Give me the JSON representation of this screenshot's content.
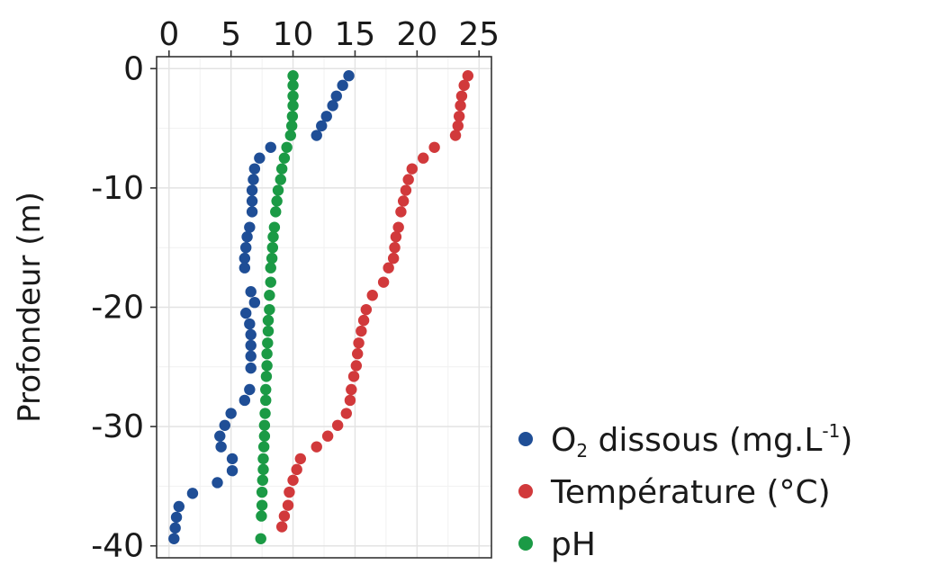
{
  "chart_data": {
    "type": "scatter",
    "title": "",
    "xlabel": "",
    "ylabel": "Profondeur (m)",
    "xlim": [
      -1,
      26
    ],
    "ylim": [
      -41,
      1
    ],
    "x_ticks": [
      0,
      5,
      10,
      15,
      20,
      25
    ],
    "y_ticks": [
      0,
      -10,
      -20,
      -30,
      -40
    ],
    "x_axis_position": "top",
    "grid": true,
    "legend_position": "right-bottom",
    "series": [
      {
        "name": "O₂ dissous (mg.L⁻¹)",
        "name_main": "O",
        "name_sub": "2",
        "name_mid": " dissous (mg.L",
        "name_sup": "-1",
        "name_end": ")",
        "color": "#1f4e96",
        "x": [
          14.5,
          14.0,
          13.5,
          13.2,
          12.7,
          12.3,
          11.9,
          8.2,
          7.3,
          6.9,
          6.8,
          6.7,
          6.7,
          6.7,
          6.5,
          6.3,
          6.2,
          6.1,
          6.1,
          6.6,
          6.9,
          6.2,
          6.5,
          6.6,
          6.6,
          6.6,
          6.6,
          6.5,
          6.1,
          5.0,
          4.5,
          4.1,
          4.2,
          5.1,
          5.1,
          3.9,
          1.9,
          0.8,
          0.6,
          0.5,
          0.4
        ],
        "y": [
          -0.6,
          -1.4,
          -2.3,
          -3.1,
          -4.0,
          -4.8,
          -5.6,
          -6.6,
          -7.5,
          -8.4,
          -9.3,
          -10.2,
          -11.1,
          -12.0,
          -13.3,
          -14.1,
          -15.0,
          -15.9,
          -16.7,
          -18.7,
          -19.6,
          -20.5,
          -21.4,
          -22.3,
          -23.2,
          -24.1,
          -25.1,
          -26.9,
          -27.8,
          -28.9,
          -29.9,
          -30.8,
          -31.7,
          -32.7,
          -33.7,
          -34.7,
          -35.6,
          -36.7,
          -37.6,
          -38.5,
          -39.4
        ]
      },
      {
        "name": "Température (°C)",
        "color": "#d1393b",
        "x": [
          24.1,
          23.8,
          23.6,
          23.5,
          23.4,
          23.3,
          23.1,
          21.4,
          20.5,
          19.6,
          19.3,
          19.1,
          18.9,
          18.7,
          18.5,
          18.3,
          18.2,
          18.1,
          17.7,
          17.3,
          16.4,
          15.9,
          15.7,
          15.5,
          15.3,
          15.2,
          15.1,
          14.9,
          14.7,
          14.6,
          14.3,
          13.6,
          12.8,
          11.9,
          10.6,
          10.3,
          10.0,
          9.7,
          9.6,
          9.3,
          9.1
        ],
        "y": [
          -0.6,
          -1.4,
          -2.3,
          -3.1,
          -4.0,
          -4.8,
          -5.6,
          -6.6,
          -7.5,
          -8.4,
          -9.3,
          -10.2,
          -11.1,
          -12.0,
          -13.3,
          -14.1,
          -15.0,
          -15.9,
          -16.7,
          -17.9,
          -19.0,
          -20.2,
          -21.1,
          -22.0,
          -23.0,
          -23.9,
          -24.9,
          -25.8,
          -26.9,
          -27.8,
          -28.9,
          -29.9,
          -30.8,
          -31.7,
          -32.7,
          -33.6,
          -34.5,
          -35.5,
          -36.6,
          -37.5,
          -38.4
        ]
      },
      {
        "name": "pH",
        "color": "#1b9a45",
        "x": [
          10.0,
          10.0,
          10.0,
          10.0,
          9.95,
          9.9,
          9.8,
          9.5,
          9.3,
          9.1,
          9.0,
          8.8,
          8.7,
          8.6,
          8.5,
          8.4,
          8.35,
          8.3,
          8.2,
          8.2,
          8.1,
          8.1,
          8.0,
          8.0,
          7.95,
          7.9,
          7.9,
          7.85,
          7.8,
          7.8,
          7.75,
          7.7,
          7.7,
          7.65,
          7.6,
          7.6,
          7.55,
          7.5,
          7.5,
          7.45,
          7.4
        ],
        "y": [
          -0.6,
          -1.4,
          -2.3,
          -3.1,
          -4.0,
          -4.8,
          -5.6,
          -6.6,
          -7.5,
          -8.4,
          -9.3,
          -10.2,
          -11.1,
          -12.0,
          -13.3,
          -14.1,
          -15.0,
          -15.9,
          -16.7,
          -17.9,
          -19.0,
          -20.2,
          -21.1,
          -22.0,
          -23.0,
          -23.9,
          -24.9,
          -25.8,
          -26.9,
          -27.8,
          -28.9,
          -29.9,
          -30.8,
          -31.7,
          -32.7,
          -33.6,
          -34.5,
          -35.5,
          -36.6,
          -37.5,
          -39.4
        ]
      }
    ]
  }
}
